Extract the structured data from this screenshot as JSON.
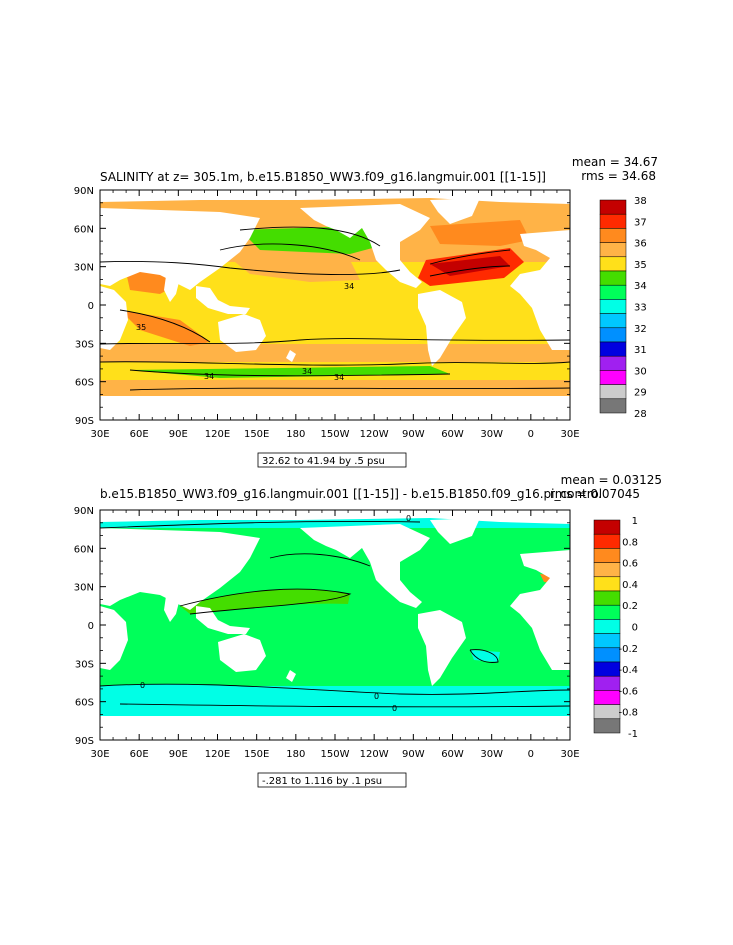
{
  "chart_data": [
    {
      "type": "heatmap",
      "title": "SALINITY at z= 305.1m, b.e15.B1850_WW3.f09_g16.langmuir.001 [[1-15]]",
      "stat_mean": "mean = 34.67",
      "stat_rms": "rms = 34.68",
      "x_ticks": [
        "30E",
        "60E",
        "90E",
        "120E",
        "150E",
        "180",
        "150W",
        "120W",
        "90W",
        "60W",
        "30W",
        "0",
        "30E"
      ],
      "y_ticks": [
        "90N",
        "60N",
        "30N",
        "0",
        "30S",
        "60S",
        "90S"
      ],
      "colorbar_labels": [
        "38",
        "37",
        "36",
        "35",
        "34",
        "33",
        "32",
        "31",
        "30",
        "29",
        "28"
      ],
      "colorbar_colors": [
        "#c40000",
        "#ff2a00",
        "#ff8a1e",
        "#ffb347",
        "#ffe01a",
        "#44dd00",
        "#00ff5a",
        "#00ffe6",
        "#00c8ff",
        "#0090ff",
        "#0000e0",
        "#a020f0",
        "#ff00ff",
        "#cccccc",
        "#777777"
      ],
      "contour_labels": [
        "34",
        "35",
        "34",
        "34",
        "34"
      ],
      "range_note": "32.62 to 41.94 by .5 psu"
    },
    {
      "type": "heatmap",
      "title": "b.e15.B1850_WW3.f09_g16.langmuir.001 [[1-15]] - b.e15.B1850.f09_g16.pi_control",
      "stat_mean": "mean = 0.03125",
      "stat_rms": "rms = 0.07045",
      "x_ticks": [
        "30E",
        "60E",
        "90E",
        "120E",
        "150E",
        "180",
        "150W",
        "120W",
        "90W",
        "60W",
        "30W",
        "0",
        "30E"
      ],
      "y_ticks": [
        "90N",
        "60N",
        "30N",
        "0",
        "30S",
        "60S",
        "90S"
      ],
      "colorbar_labels": [
        "1",
        "0.8",
        "0.6",
        "0.4",
        "0.2",
        "0",
        "-0.2",
        "-0.4",
        "-0.6",
        "-0.8",
        "-1"
      ],
      "colorbar_colors": [
        "#c40000",
        "#ff2a00",
        "#ff8a1e",
        "#ffb347",
        "#ffe01a",
        "#44dd00",
        "#00ff5a",
        "#00ffe6",
        "#00c8ff",
        "#0090ff",
        "#0000e0",
        "#a020f0",
        "#ff00ff",
        "#cccccc",
        "#777777"
      ],
      "contour_labels": [
        "0",
        "0",
        "0",
        "0"
      ],
      "range_note": "-.281 to 1.116 by .1 psu"
    }
  ]
}
